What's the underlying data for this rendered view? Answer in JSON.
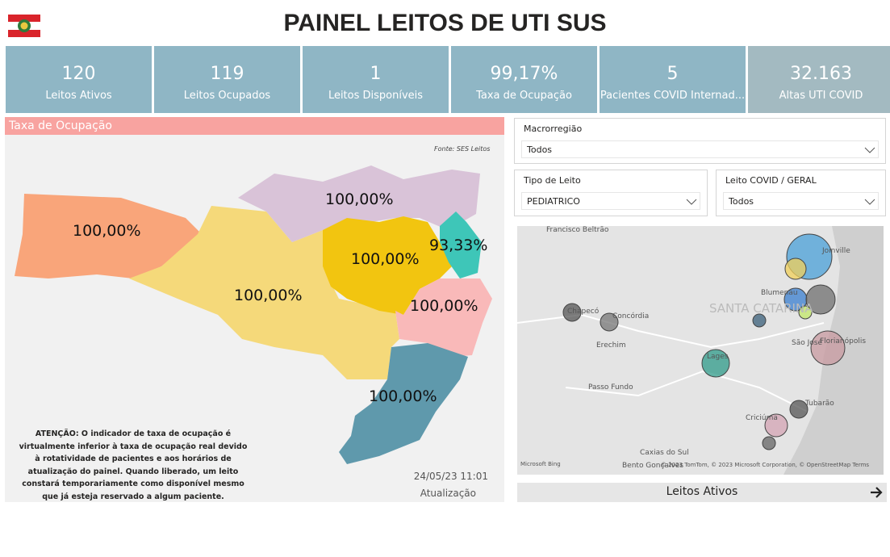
{
  "header": {
    "title": "PAINEL LEITOS DE UTI SUS"
  },
  "kpis": [
    {
      "value": "120",
      "label": "Leitos Ativos"
    },
    {
      "value": "119",
      "label": "Leitos Ocupados"
    },
    {
      "value": "1",
      "label": "Leitos Disponíveis"
    },
    {
      "value": "99,17%",
      "label": "Taxa de Ocupação"
    },
    {
      "value": "5",
      "label": "Pacientes COVID Internad..."
    },
    {
      "value": "32.163",
      "label": "Altas UTI COVID"
    }
  ],
  "occupancy_map": {
    "title": "Taxa de Ocupação",
    "source": "Fonte: SES Leitos",
    "regions": [
      {
        "label": "100,00%"
      },
      {
        "label": "100,00%"
      },
      {
        "label": "100,00%"
      },
      {
        "label": "100,00%"
      },
      {
        "label": "93,33%"
      },
      {
        "label": "100,00%"
      },
      {
        "label": "100,00%"
      }
    ],
    "notice": "ATENÇÃO: O indicador de taxa de ocupação é virtualmente inferior à taxa de ocupação real devido à rotatividade de pacientes e aos horários de atualização do painel.  Quando liberado, um leito constará temporariamente como disponível mesmo que já esteja reservado a algum paciente.",
    "updated_at": "24/05/23 11:01",
    "updated_label": "Atualização"
  },
  "filters": [
    {
      "label": "Macrorregião",
      "value": "Todos"
    },
    {
      "label": "Tipo de Leito",
      "value": "PEDIATRICO"
    },
    {
      "label": "Leito COVID / GERAL",
      "value": "Todos"
    }
  ],
  "bubble_map": {
    "places": [
      "Francisco Beltrão",
      "Chapecó",
      "Concórdia",
      "Erechim",
      "Passo Fundo",
      "Caxias do Sul",
      "Bento Gonçalves",
      "Lages",
      "SANTA CATARINA",
      "Blumenau",
      "Joinville",
      "São José",
      "Florianópolis",
      "Tubarão",
      "Criciúma"
    ],
    "logo": "Microsoft Bing",
    "attribution": "© 2023 TomTom, © 2023 Microsoft Corporation, © OpenStreetMap  Terms"
  },
  "button": {
    "label": "Leitos Ativos"
  }
}
